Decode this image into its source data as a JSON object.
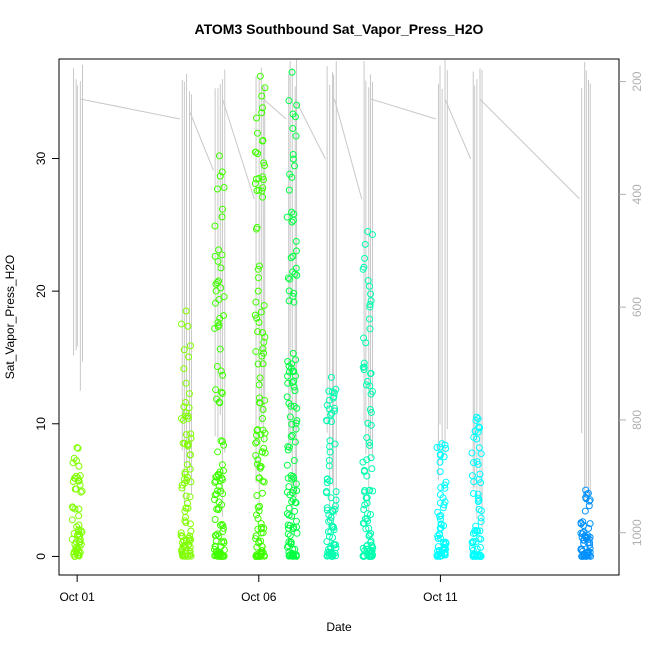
{
  "chart_data": {
    "type": "scatter",
    "title": "ATOM3 Southbound Sat_Vapor_Press_H2O",
    "xlabel": "Date",
    "ylabel": "Sat_Vapor_Press_H2O",
    "x_axis": {
      "kind": "date",
      "range": [
        "2016-09-30T12:00",
        "2016-10-15T22:00"
      ],
      "ticks": [
        "2016-10-01",
        "2016-10-06",
        "2016-10-11"
      ],
      "tick_labels": [
        "Oct 01",
        "Oct 06",
        "Oct 11"
      ]
    },
    "y_axis_left": {
      "range": [
        -1.4,
        37.5
      ],
      "ticks": [
        0,
        10,
        20,
        30
      ]
    },
    "y_axis_right": {
      "range": [
        1075,
        160
      ],
      "reversed": true,
      "ticks": [
        200,
        400,
        600,
        800,
        1000
      ],
      "series": "pressure profile (gray)"
    },
    "grid": false,
    "point_color_by_time": [
      "#80ff00",
      "#40ff00",
      "#00ff40",
      "#00ffb0",
      "#00ffff",
      "#0090ff"
    ],
    "line_color": "#c8c8c8",
    "profiles": [
      {
        "x": "2016-10-01T00:00",
        "y_min": 0.0,
        "y_max": 8.2,
        "p_top": 160,
        "p_bottom": 820
      },
      {
        "x": "2016-10-04T00:00",
        "y_min": 0.0,
        "y_max": 18.5,
        "p_top": 180,
        "p_bottom": 1000
      },
      {
        "x": "2016-10-04T22:00",
        "y_min": 0.0,
        "y_max": 30.2,
        "p_top": 160,
        "p_bottom": 1000
      },
      {
        "x": "2016-10-06T01:00",
        "y_min": 0.0,
        "y_max": 36.2,
        "p_top": 160,
        "p_bottom": 1000
      },
      {
        "x": "2016-10-06T22:00",
        "y_min": 0.0,
        "y_max": 36.5,
        "p_top": 160,
        "p_bottom": 1000
      },
      {
        "x": "2016-10-08T00:00",
        "y_min": 0.0,
        "y_max": 13.5,
        "p_top": 160,
        "p_bottom": 1000
      },
      {
        "x": "2016-10-09T00:00",
        "y_min": 0.0,
        "y_max": 24.5,
        "p_top": 160,
        "p_bottom": 1000
      },
      {
        "x": "2016-10-11T01:00",
        "y_min": 0.0,
        "y_max": 8.5,
        "p_top": 160,
        "p_bottom": 1000
      },
      {
        "x": "2016-10-12T00:00",
        "y_min": 0.0,
        "y_max": 10.5,
        "p_top": 160,
        "p_bottom": 1000
      },
      {
        "x": "2016-10-15T00:00",
        "y_min": 0.0,
        "y_max": 5.0,
        "p_top": 160,
        "p_bottom": 1000
      }
    ]
  }
}
